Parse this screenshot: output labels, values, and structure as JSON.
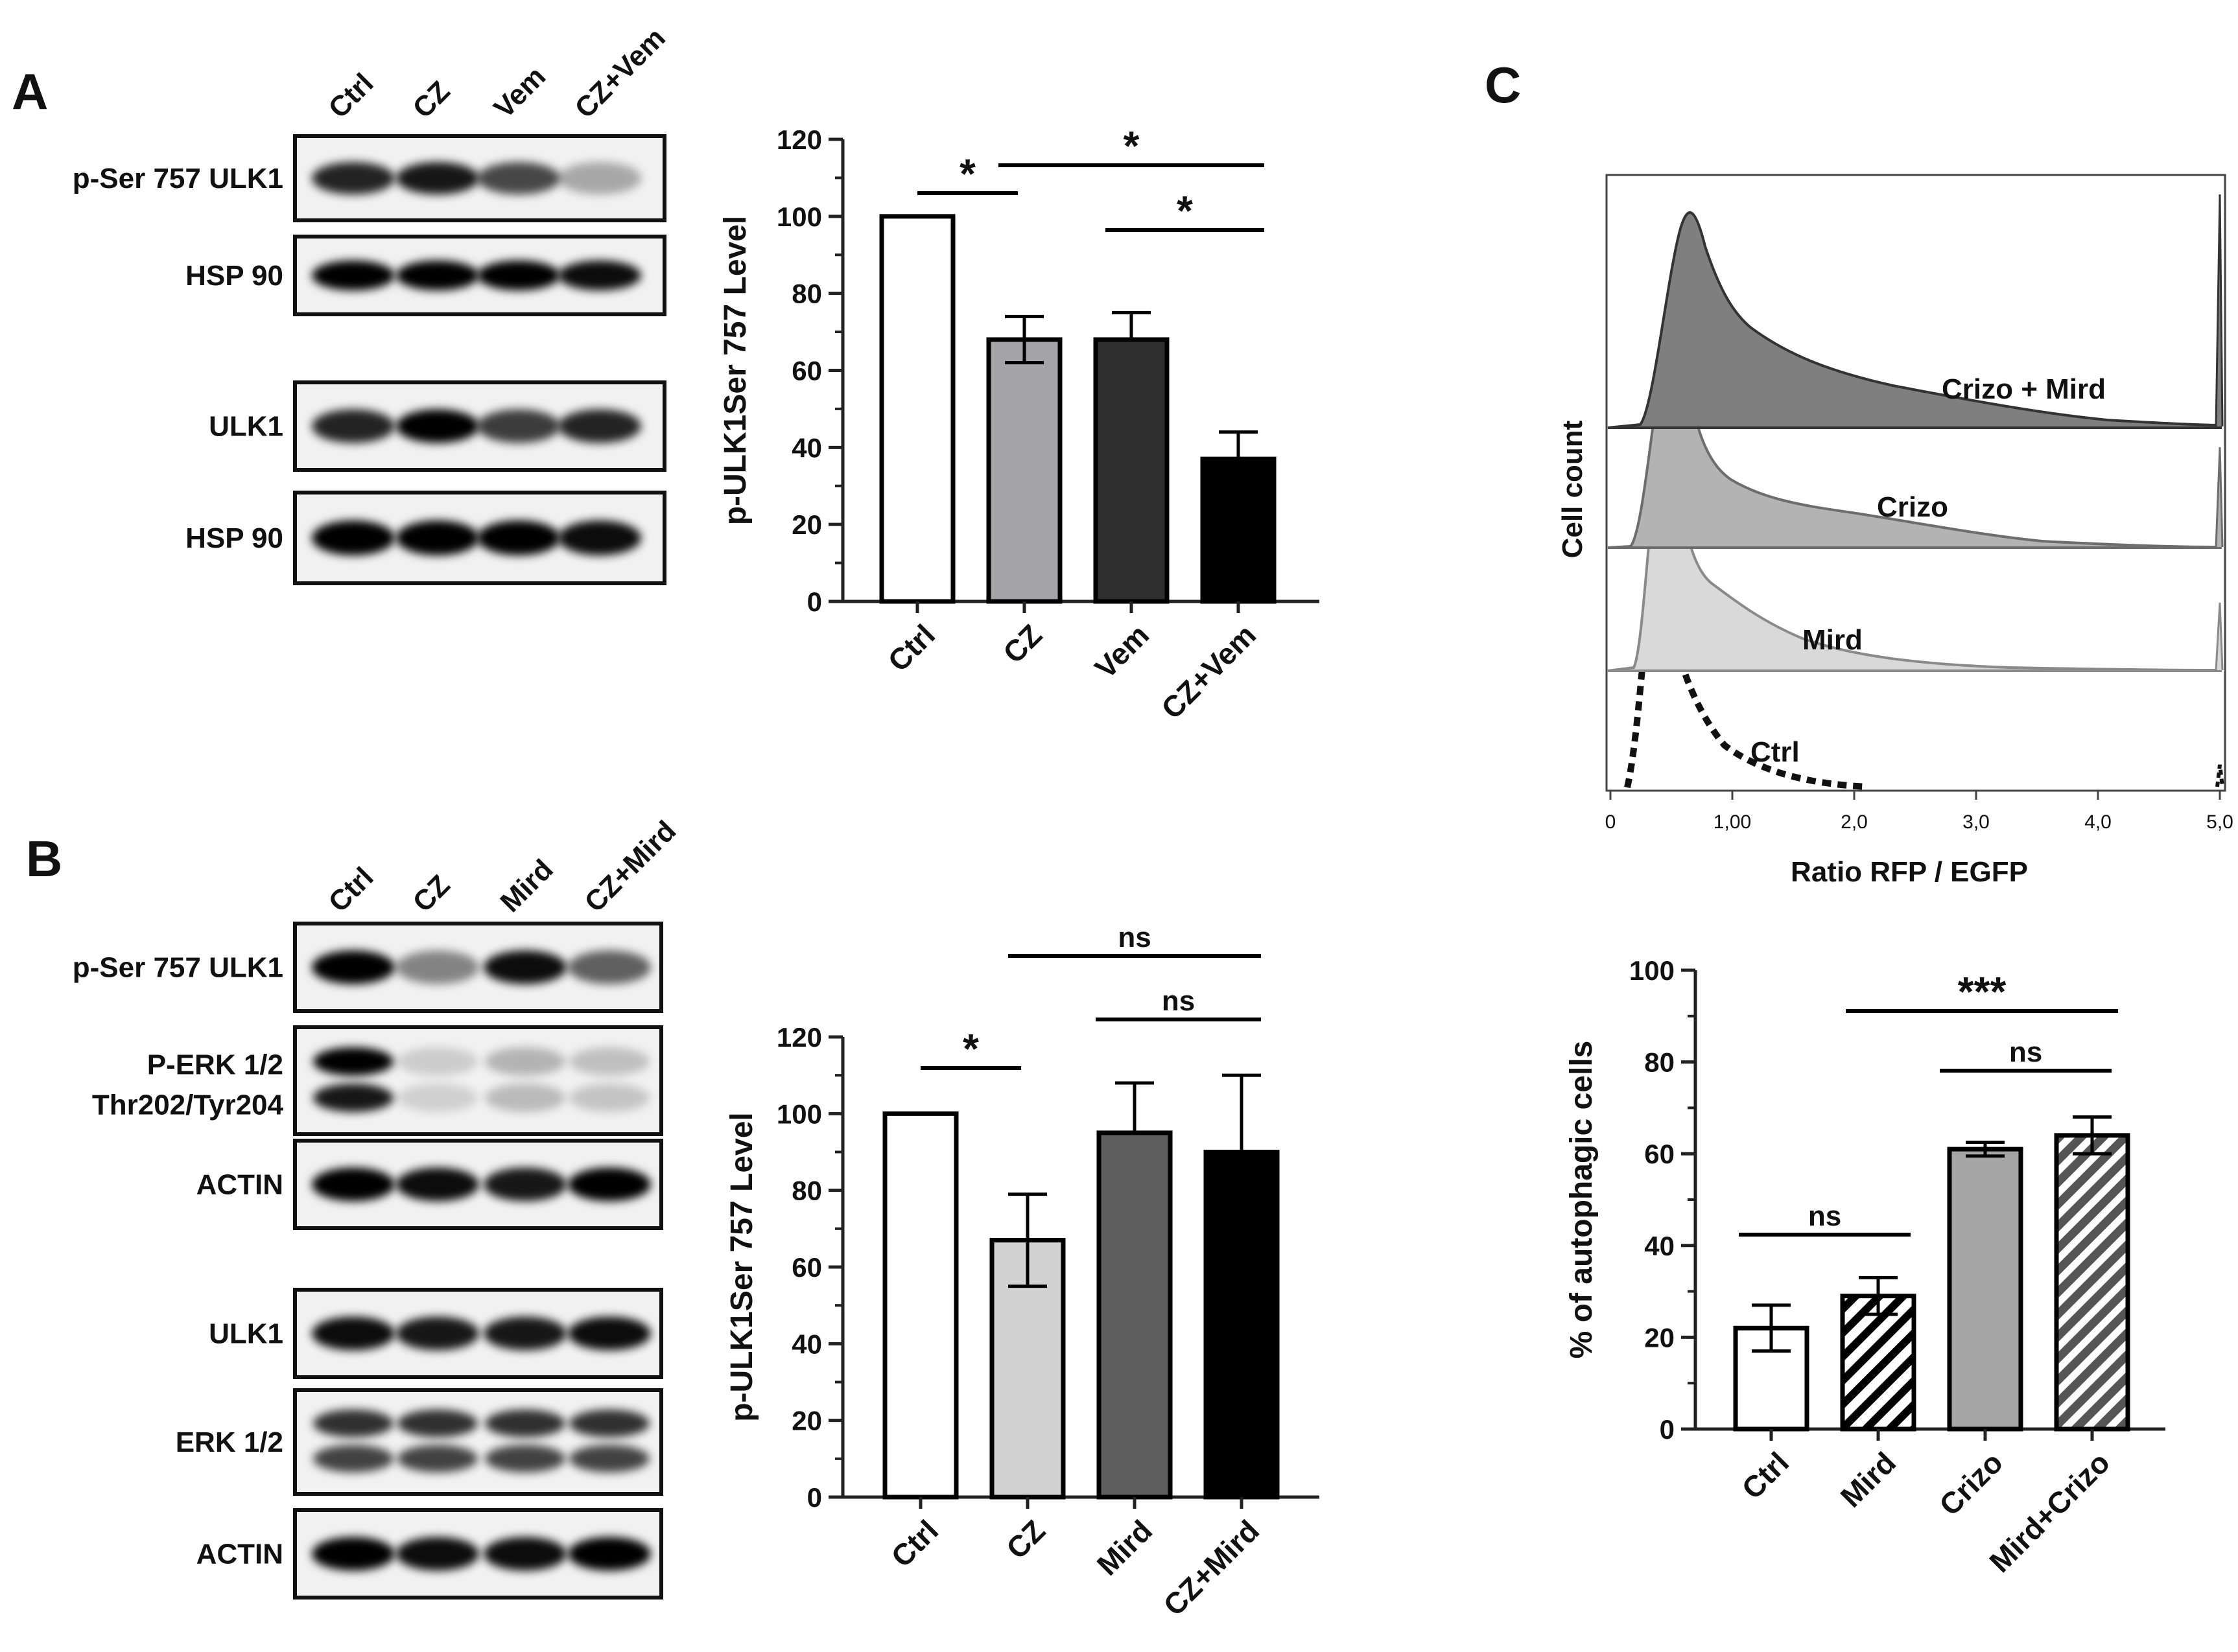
{
  "panels": {
    "A": {
      "letter": "A",
      "blot": {
        "lanes": [
          "Ctrl",
          "CZ",
          "Vem",
          "CZ+Vem"
        ],
        "rows": [
          {
            "label": "p-Ser 757 ULK1",
            "intensity": [
              0.85,
              0.9,
              0.7,
              0.3
            ],
            "bands": 1
          },
          {
            "label": "HSP 90",
            "intensity": [
              1.0,
              1.0,
              1.0,
              0.95
            ],
            "bands": 1
          },
          {
            "label": "ULK1",
            "intensity": [
              0.85,
              1.0,
              0.75,
              0.85
            ],
            "bands": 1
          },
          {
            "label": "HSP 90",
            "intensity": [
              1.0,
              1.0,
              1.0,
              0.95
            ],
            "bands": 1
          }
        ]
      }
    },
    "B": {
      "letter": "B",
      "blot": {
        "lanes": [
          "Ctrl",
          "CZ",
          "Mird",
          "CZ+Mird"
        ],
        "rows": [
          {
            "label": "p-Ser 757 ULK1",
            "intensity": [
              1.0,
              0.45,
              0.95,
              0.6
            ],
            "bands": 1
          },
          {
            "label_lines": [
              "P-ERK 1/2",
              "Thr202/Tyr204"
            ],
            "intensity": [
              1.0,
              0.15,
              0.25,
              0.2
            ],
            "bands": 2
          },
          {
            "label": "ACTIN",
            "intensity": [
              1.0,
              0.95,
              0.9,
              1.0
            ],
            "bands": 1
          },
          {
            "label": "ULK1",
            "intensity": [
              0.95,
              0.9,
              0.9,
              0.95
            ],
            "bands": 1
          },
          {
            "label": "ERK 1/2",
            "intensity": [
              0.8,
              0.8,
              0.8,
              0.8
            ],
            "bands": 2
          },
          {
            "label": "ACTIN",
            "intensity": [
              1.0,
              0.95,
              0.95,
              1.0
            ],
            "bands": 1
          }
        ]
      }
    },
    "C": {
      "letter": "C",
      "histogram": {
        "ylabel": "Cell count",
        "xlabel": "Ratio RFP / EGFP",
        "xticks": [
          "0",
          "1,00",
          "2,0",
          "3,0",
          "4,0",
          "5,0"
        ],
        "curve_labels": [
          "Crizo + Mird",
          "Crizo",
          "Mird",
          "Ctrl"
        ]
      }
    }
  },
  "chart_data": [
    {
      "type": "bar",
      "panel": "A",
      "categories": [
        "Ctrl",
        "CZ",
        "Vem",
        "CZ+Vem"
      ],
      "values": [
        100,
        68,
        68,
        37
      ],
      "errors": [
        0,
        6,
        7,
        7
      ],
      "colors": [
        "#ffffff",
        "#a3a3a8",
        "#2e2e2e",
        "#000000"
      ],
      "ylabel": "p-ULK1Ser 757  Level",
      "ylim": [
        0,
        120
      ],
      "yticks": [
        0,
        20,
        40,
        60,
        80,
        100,
        120
      ],
      "significance": [
        {
          "from": 0,
          "to": 1,
          "label": "*"
        },
        {
          "from": 1,
          "to": 3,
          "label": "*"
        },
        {
          "from": 2,
          "to": 3,
          "label": "*"
        }
      ]
    },
    {
      "type": "bar",
      "panel": "B",
      "categories": [
        "Ctrl",
        "CZ",
        "Mird",
        "CZ+Mird"
      ],
      "values": [
        100,
        67,
        95,
        90
      ],
      "errors": [
        0,
        12,
        13,
        20
      ],
      "colors": [
        "#ffffff",
        "#d2d2d2",
        "#5e5e5e",
        "#000000"
      ],
      "ylabel": "p-ULK1Ser 757  Level",
      "ylim": [
        0,
        120
      ],
      "yticks": [
        0,
        20,
        40,
        60,
        80,
        100,
        120
      ],
      "significance": [
        {
          "from": 0,
          "to": 1,
          "label": "*"
        },
        {
          "from": 1,
          "to": 3,
          "label": "ns"
        },
        {
          "from": 2,
          "to": 3,
          "label": "ns"
        }
      ]
    },
    {
      "type": "bar",
      "panel": "C",
      "categories": [
        "Ctrl",
        "Mird",
        "Crizo",
        "Mird+Crizo"
      ],
      "values": [
        22,
        29,
        61,
        64
      ],
      "errors": [
        5,
        4,
        1.5,
        4
      ],
      "colors": [
        "#ffffff",
        "hatch",
        "#a6a6a6",
        "hatch-gray"
      ],
      "ylabel": "% of autophagic cells",
      "ylim": [
        0,
        100
      ],
      "yticks": [
        0,
        20,
        40,
        60,
        80,
        100
      ],
      "significance": [
        {
          "from": 0,
          "to": 1,
          "label": "ns"
        },
        {
          "from": 1,
          "to": 3,
          "label": "***"
        },
        {
          "from": 2,
          "to": 3,
          "label": "ns"
        }
      ]
    }
  ]
}
